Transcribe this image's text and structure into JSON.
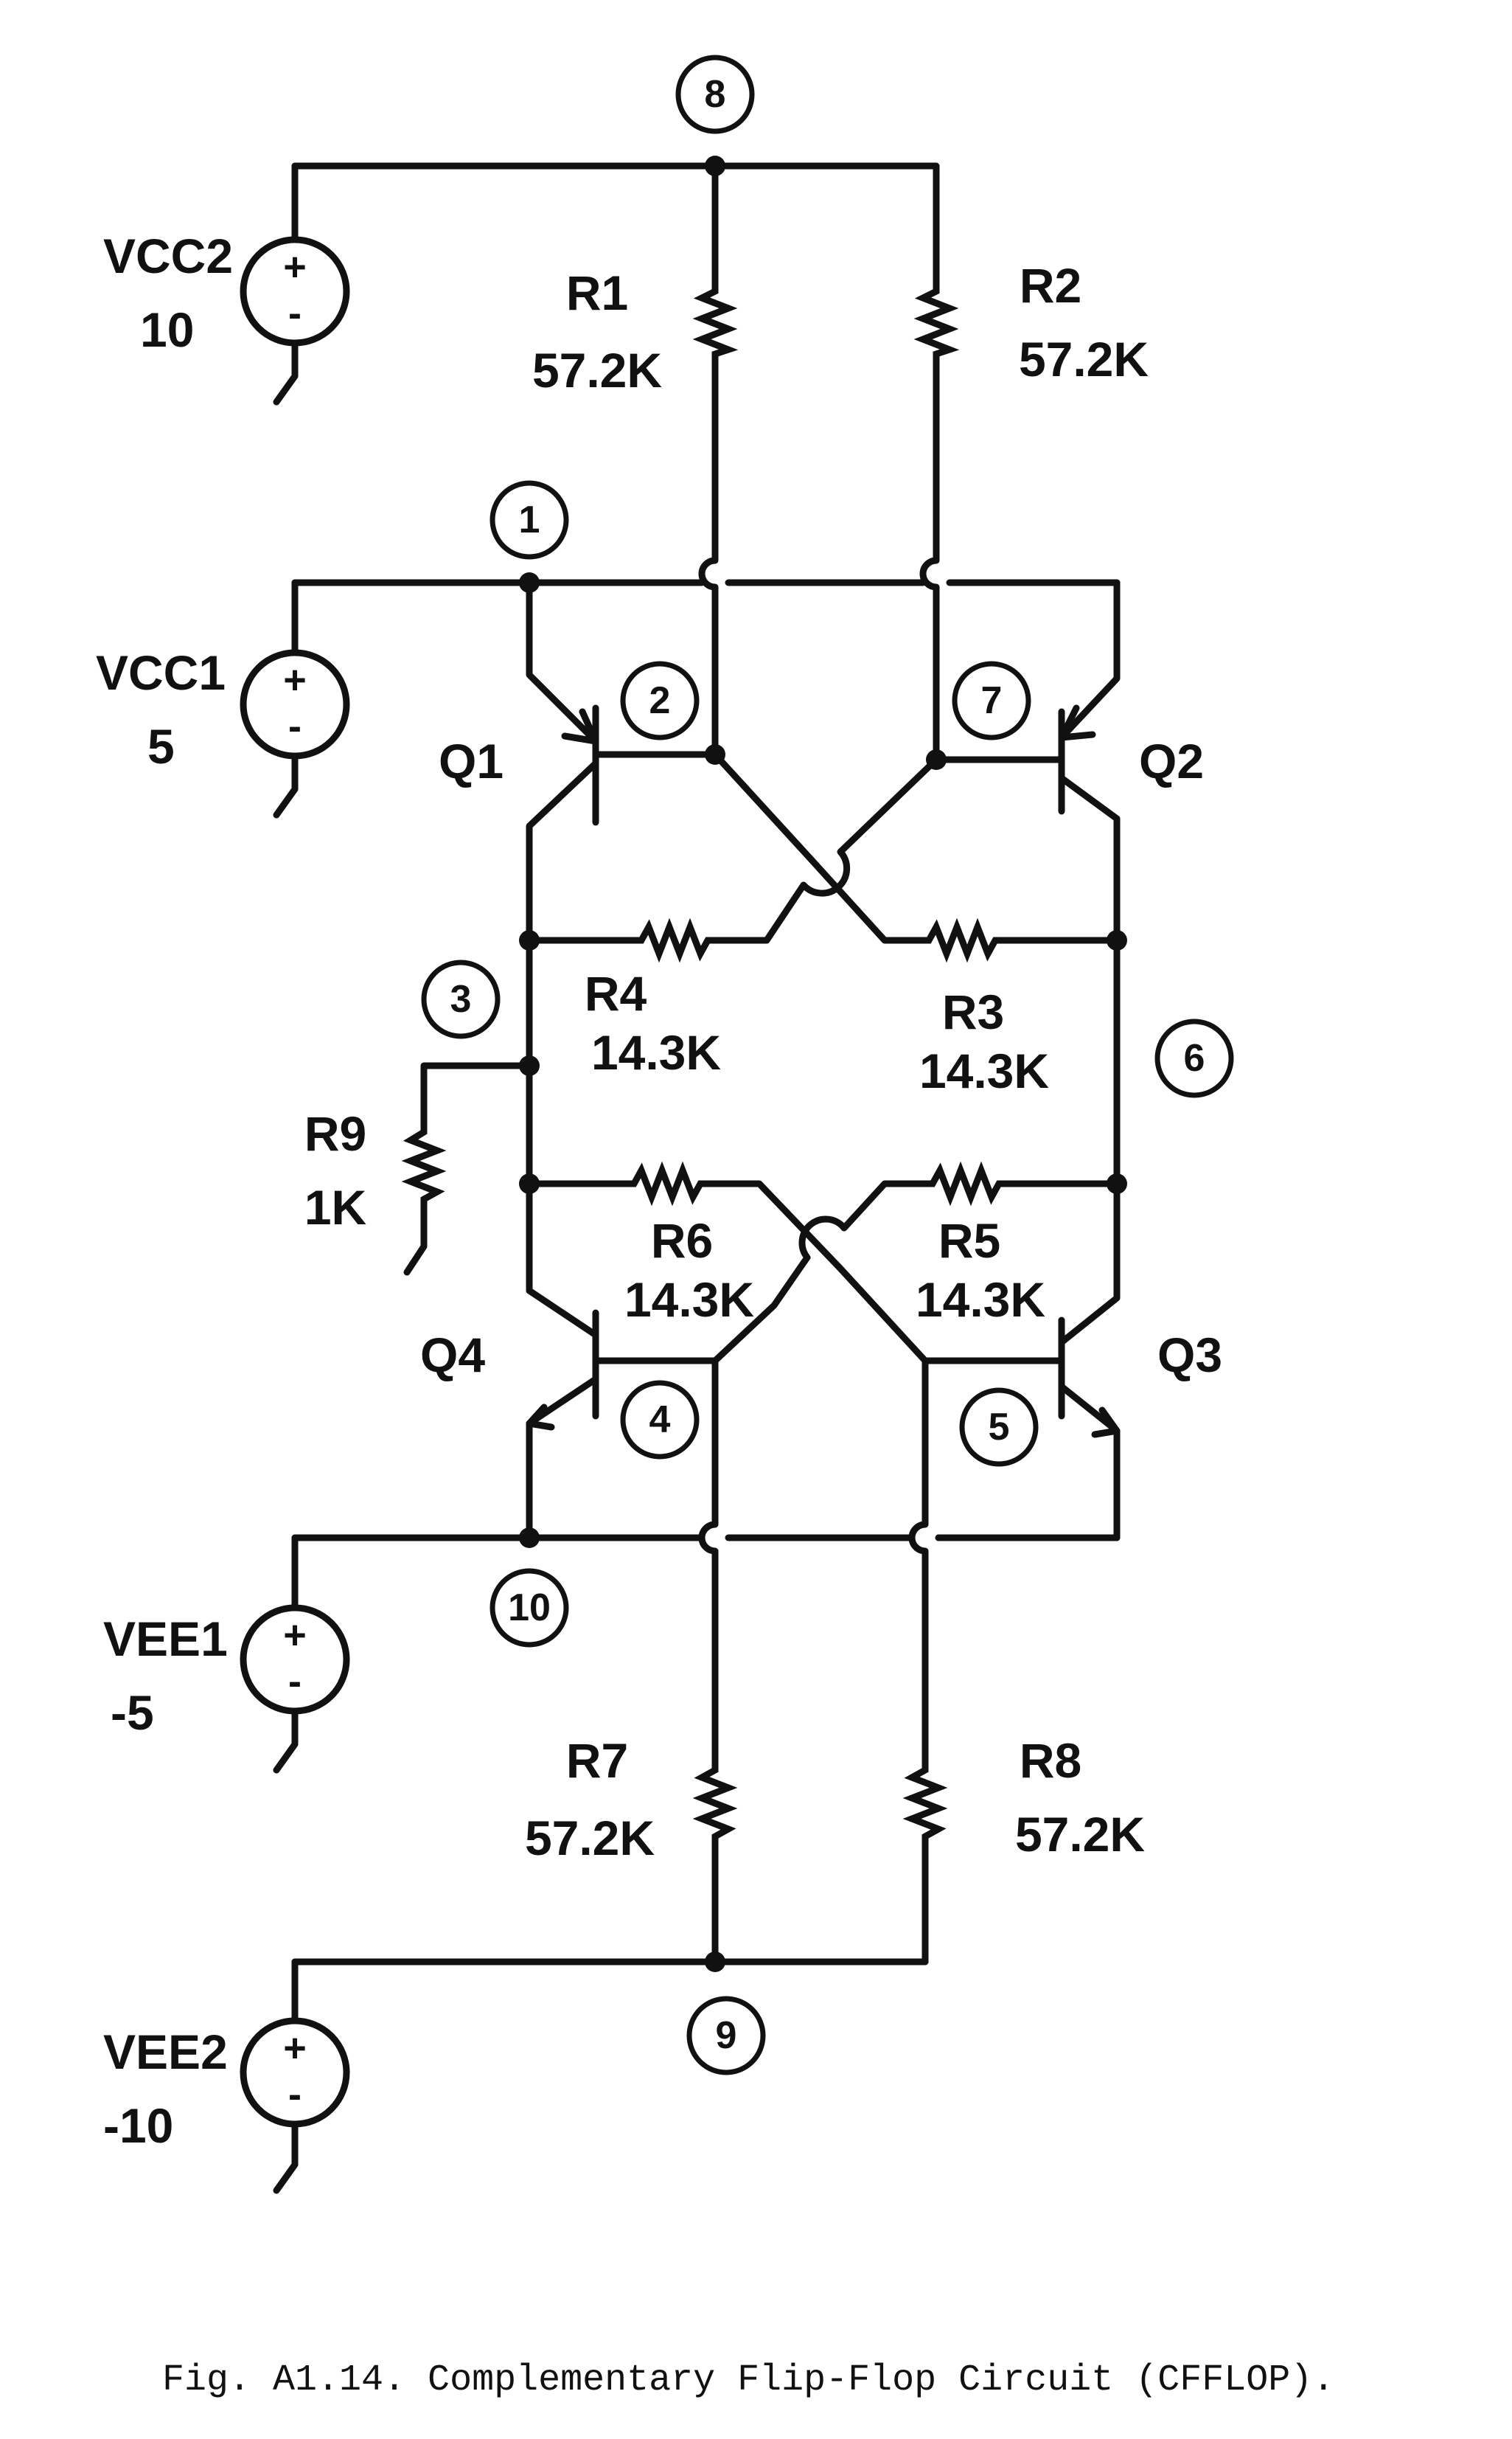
{
  "caption": "Fig. A1.14.  Complementary Flip-Flop Circuit (CFFLOP).",
  "nodes": [
    "8",
    "1",
    "2",
    "7",
    "3",
    "6",
    "4",
    "5",
    "10",
    "9"
  ],
  "sources": {
    "vcc2": {
      "name": "VCC2",
      "value": "10"
    },
    "vcc1": {
      "name": "VCC1",
      "value": "5"
    },
    "vee1": {
      "name": "VEE1",
      "value": "-5"
    },
    "vee2": {
      "name": "VEE2",
      "value": "-10"
    },
    "plus": "+",
    "minus": "-"
  },
  "resistors": {
    "r1": {
      "name": "R1",
      "value": "57.2K"
    },
    "r2": {
      "name": "R2",
      "value": "57.2K"
    },
    "r3": {
      "name": "R3",
      "value": "14.3K"
    },
    "r4": {
      "name": "R4",
      "value": "14.3K"
    },
    "r5": {
      "name": "R5",
      "value": "14.3K"
    },
    "r6": {
      "name": "R6",
      "value": "14.3K"
    },
    "r7": {
      "name": "R7",
      "value": "57.2K"
    },
    "r8": {
      "name": "R8",
      "value": "57.2K"
    },
    "r9": {
      "name": "R9",
      "value": "1K"
    }
  },
  "transistors": {
    "q1": "Q1",
    "q2": "Q2",
    "q3": "Q3",
    "q4": "Q4"
  }
}
